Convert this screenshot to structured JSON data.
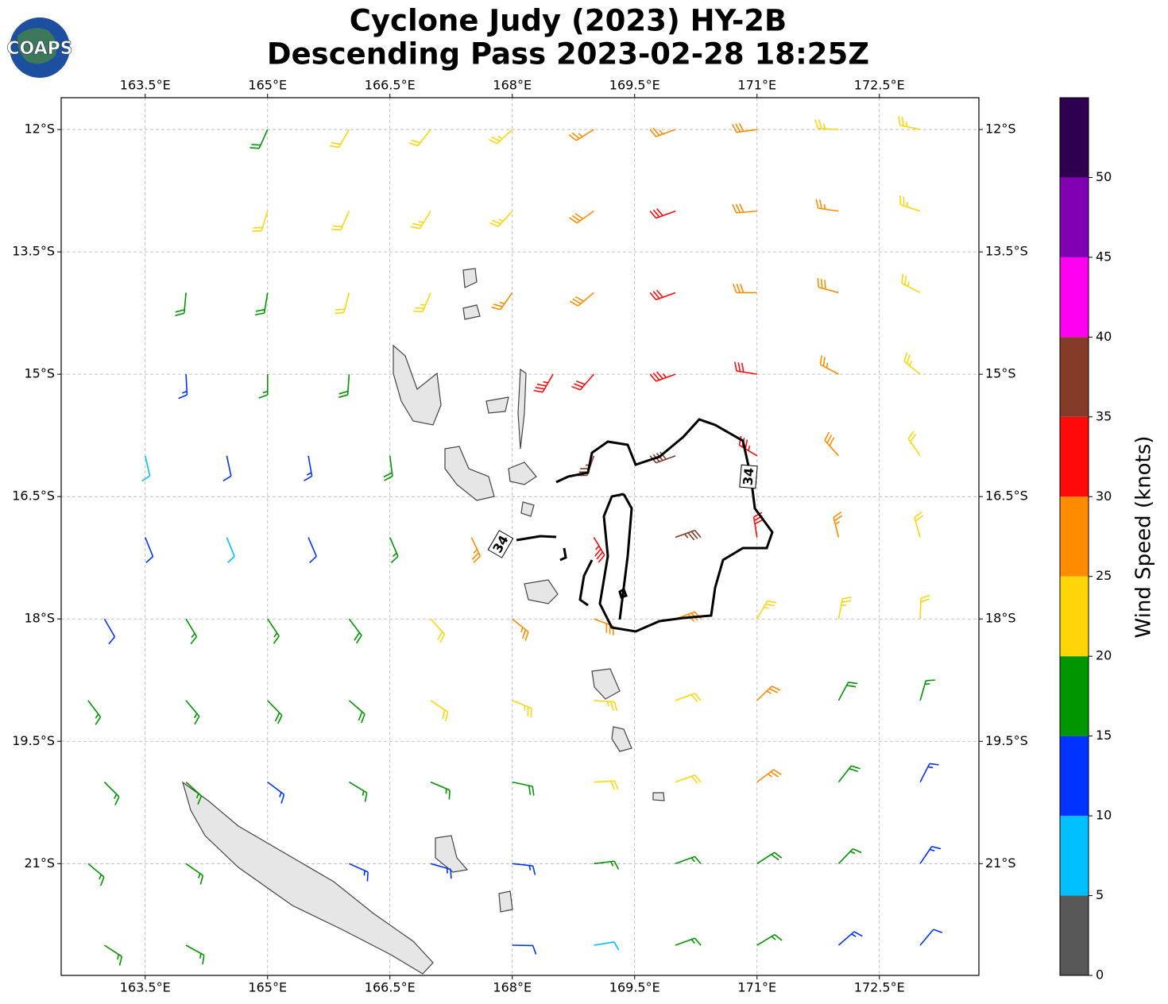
{
  "logo": "COAPS",
  "chart_data": {
    "type": "barbs",
    "title": [
      "Cyclone Judy (2023) HY-2B",
      "Descending Pass 2023-02-28 18:25Z"
    ],
    "xlim": [
      162.47,
      173.72
    ],
    "ylim": [
      -22.37,
      -11.61
    ],
    "xticks": [
      {
        "value": 163.5,
        "label": "163.5°E"
      },
      {
        "value": 165,
        "label": "165°E"
      },
      {
        "value": 166.5,
        "label": "166.5°E"
      },
      {
        "value": 168,
        "label": "168°E"
      },
      {
        "value": 169.5,
        "label": "169.5°E"
      },
      {
        "value": 171,
        "label": "171°E"
      },
      {
        "value": 172.5,
        "label": "172.5°E"
      }
    ],
    "yticks": [
      {
        "value": -12,
        "label": "12°S"
      },
      {
        "value": -13.5,
        "label": "13.5°S"
      },
      {
        "value": -15,
        "label": "15°S"
      },
      {
        "value": -16.5,
        "label": "16.5°S"
      },
      {
        "value": -18,
        "label": "18°S"
      },
      {
        "value": -19.5,
        "label": "19.5°S"
      },
      {
        "value": -21,
        "label": "21°S"
      }
    ],
    "grid": true,
    "contour_levels": [
      34
    ],
    "barbs": [
      [
        165,
        -12,
        18,
        204
      ],
      [
        166,
        -12,
        22,
        210
      ],
      [
        167,
        -12,
        22,
        218
      ],
      [
        168,
        -12,
        24,
        227
      ],
      [
        169,
        -12,
        27,
        238
      ],
      [
        170,
        -12,
        27,
        250
      ],
      [
        171,
        -12,
        28,
        262
      ],
      [
        172,
        -12,
        24,
        273
      ],
      [
        173,
        -12,
        23,
        282
      ],
      [
        165,
        -13,
        21,
        197
      ],
      [
        166,
        -13,
        22,
        204
      ],
      [
        167,
        -13,
        24,
        212
      ],
      [
        168,
        -13,
        24,
        222
      ],
      [
        169,
        -13,
        28,
        235
      ],
      [
        170,
        -13,
        31,
        250
      ],
      [
        171,
        -13,
        29,
        265
      ],
      [
        172,
        -13,
        27,
        278
      ],
      [
        173,
        -13,
        23,
        288
      ],
      [
        164,
        -14,
        18,
        185
      ],
      [
        165,
        -14,
        19,
        189
      ],
      [
        166,
        -14,
        22,
        195
      ],
      [
        167,
        -14,
        23,
        203
      ],
      [
        168,
        -14,
        27,
        215
      ],
      [
        169,
        -14,
        29,
        230
      ],
      [
        170,
        -14,
        32,
        250
      ],
      [
        171,
        -14,
        29,
        270
      ],
      [
        172,
        -14,
        28,
        285
      ],
      [
        173,
        -14,
        24,
        297
      ],
      [
        164,
        -15,
        13,
        177
      ],
      [
        165,
        -15,
        17,
        180
      ],
      [
        166,
        -15,
        18,
        184
      ],
      [
        168.5,
        -15,
        33,
        210
      ],
      [
        169,
        -15,
        32,
        221
      ],
      [
        170,
        -15,
        34,
        250
      ],
      [
        171,
        -15,
        31,
        279
      ],
      [
        172,
        -15,
        27,
        298
      ],
      [
        173,
        -15,
        23,
        309
      ],
      [
        163.5,
        -16,
        8,
        167
      ],
      [
        164.5,
        -16,
        12,
        168
      ],
      [
        165.5,
        -16,
        14,
        170
      ],
      [
        166.5,
        -16,
        18,
        173
      ],
      [
        169,
        -16,
        36,
        199
      ],
      [
        170,
        -16,
        38,
        250
      ],
      [
        171,
        -16,
        33,
        301
      ],
      [
        172,
        -16,
        28,
        318
      ],
      [
        173,
        -16,
        22,
        325
      ],
      [
        163.5,
        -17,
        11,
        158
      ],
      [
        164.5,
        -17,
        9,
        158
      ],
      [
        165.5,
        -17,
        12,
        157
      ],
      [
        166.5,
        -17,
        17,
        157
      ],
      [
        167.5,
        -17,
        26,
        155
      ],
      [
        169,
        -17,
        34,
        149
      ],
      [
        170,
        -17,
        37,
        70
      ],
      [
        171,
        -17,
        32,
        351
      ],
      [
        172,
        -17,
        27,
        346
      ],
      [
        173,
        -17,
        22,
        344
      ],
      [
        163,
        -18,
        12,
        150
      ],
      [
        164,
        -18,
        16,
        149
      ],
      [
        165,
        -18,
        17,
        146
      ],
      [
        166,
        -18,
        18,
        143
      ],
      [
        167,
        -18,
        22,
        138
      ],
      [
        168,
        -18,
        27,
        129
      ],
      [
        169,
        -18,
        28,
        110
      ],
      [
        170,
        -18,
        29,
        70
      ],
      [
        171,
        -18,
        24,
        30
      ],
      [
        172,
        -18,
        23,
        11
      ],
      [
        173,
        -18,
        22,
        2
      ],
      [
        162.8,
        -19,
        17,
        143
      ],
      [
        164,
        -19,
        17,
        140
      ],
      [
        165,
        -19,
        18,
        136
      ],
      [
        166,
        -19,
        19,
        131
      ],
      [
        167,
        -19,
        21,
        124
      ],
      [
        168,
        -19,
        23,
        112
      ],
      [
        169,
        -19,
        24,
        94
      ],
      [
        170,
        -19,
        22,
        70
      ],
      [
        171,
        -19,
        26,
        46
      ],
      [
        172,
        -19,
        19,
        28
      ],
      [
        173,
        -19,
        17,
        16
      ],
      [
        163,
        -20,
        16,
        135
      ],
      [
        164,
        -20,
        17,
        132
      ],
      [
        165,
        -20,
        14,
        127
      ],
      [
        166,
        -20,
        16,
        121
      ],
      [
        167,
        -20,
        17,
        113
      ],
      [
        168,
        -20,
        18,
        102
      ],
      [
        169,
        -20,
        21,
        87
      ],
      [
        170,
        -20,
        21,
        70
      ],
      [
        171,
        -20,
        26,
        53
      ],
      [
        172,
        -20,
        18,
        38
      ],
      [
        173,
        -20,
        14,
        27
      ],
      [
        162.8,
        -21,
        16,
        130
      ],
      [
        164,
        -21,
        17,
        125
      ],
      [
        166,
        -21,
        14,
        114
      ],
      [
        167,
        -21,
        13,
        106
      ],
      [
        168,
        -21,
        14,
        96
      ],
      [
        169,
        -21,
        16,
        83
      ],
      [
        170,
        -21,
        17,
        70
      ],
      [
        171,
        -21,
        18,
        57
      ],
      [
        172,
        -21,
        16,
        44
      ],
      [
        173,
        -21,
        14,
        34
      ],
      [
        163,
        -22,
        16,
        123
      ],
      [
        164,
        -22,
        17,
        119
      ],
      [
        168,
        -22,
        12,
        91
      ],
      [
        169,
        -22,
        9,
        81
      ],
      [
        170,
        -22,
        16,
        70
      ],
      [
        171,
        -22,
        17,
        59
      ],
      [
        172,
        -22,
        14,
        49
      ],
      [
        173,
        -22,
        12,
        40
      ]
    ],
    "colorbar": {
      "label": "Wind Speed (knots)",
      "boundaries": [
        0,
        5,
        10,
        15,
        20,
        25,
        30,
        35,
        40,
        45,
        50,
        55
      ],
      "colors": [
        "#575757",
        "#00bfff",
        "#0033ff",
        "#009600",
        "#ffd60a",
        "#ff8c00",
        "#ff0a0a",
        "#843c28",
        "#ff00f0",
        "#8200b4",
        "#2d0050"
      ],
      "ticks": [
        0,
        5,
        10,
        15,
        20,
        25,
        30,
        35,
        40,
        45,
        50
      ]
    }
  }
}
